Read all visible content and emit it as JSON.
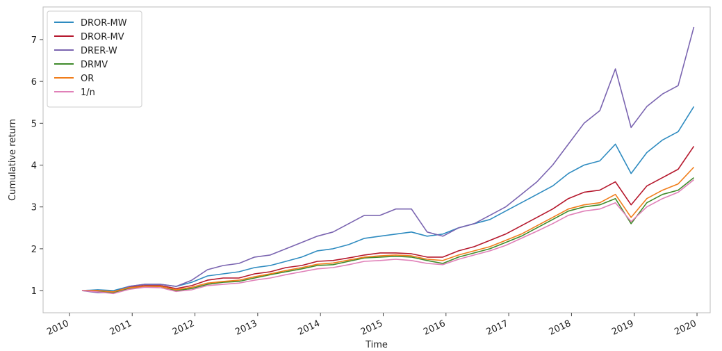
{
  "chart_data": {
    "type": "line",
    "xlabel": "Time",
    "ylabel": "Cumulative return",
    "x": [
      2010.2,
      2010.45,
      2010.7,
      2010.95,
      2011.2,
      2011.45,
      2011.7,
      2011.95,
      2012.2,
      2012.45,
      2012.7,
      2012.95,
      2013.2,
      2013.45,
      2013.7,
      2013.95,
      2014.2,
      2014.45,
      2014.7,
      2014.95,
      2015.2,
      2015.45,
      2015.7,
      2015.95,
      2016.2,
      2016.45,
      2016.7,
      2016.95,
      2017.2,
      2017.45,
      2017.7,
      2017.95,
      2018.2,
      2018.45,
      2018.7,
      2018.95,
      2019.2,
      2019.45,
      2019.7,
      2019.95
    ],
    "series": [
      {
        "name": "DROR-MW",
        "color": "#2e8bc0",
        "values": [
          1.0,
          1.02,
          1.0,
          1.1,
          1.15,
          1.15,
          1.1,
          1.2,
          1.35,
          1.4,
          1.45,
          1.55,
          1.6,
          1.7,
          1.8,
          1.95,
          2.0,
          2.1,
          2.25,
          2.3,
          2.35,
          2.4,
          2.3,
          2.35,
          2.5,
          2.6,
          2.7,
          2.9,
          3.1,
          3.3,
          3.5,
          3.8,
          4.0,
          4.1,
          4.5,
          3.8,
          4.3,
          4.6,
          4.8,
          5.4
        ]
      },
      {
        "name": "DROR-MV",
        "color": "#b5172c",
        "values": [
          1.0,
          1.0,
          0.97,
          1.08,
          1.12,
          1.12,
          1.05,
          1.12,
          1.25,
          1.3,
          1.3,
          1.4,
          1.45,
          1.55,
          1.6,
          1.7,
          1.72,
          1.78,
          1.85,
          1.9,
          1.9,
          1.88,
          1.8,
          1.8,
          1.95,
          2.05,
          2.2,
          2.35,
          2.55,
          2.75,
          2.95,
          3.2,
          3.35,
          3.4,
          3.6,
          3.05,
          3.5,
          3.7,
          3.9,
          4.45
        ]
      },
      {
        "name": "DRER-W",
        "color": "#7a64b0",
        "values": [
          1.0,
          0.95,
          0.95,
          1.1,
          1.15,
          1.15,
          1.1,
          1.25,
          1.5,
          1.6,
          1.65,
          1.8,
          1.85,
          2.0,
          2.15,
          2.3,
          2.4,
          2.6,
          2.8,
          2.8,
          2.95,
          2.95,
          2.4,
          2.3,
          2.5,
          2.6,
          2.8,
          3.0,
          3.3,
          3.6,
          4.0,
          4.5,
          5.0,
          5.3,
          6.3,
          4.9,
          5.4,
          5.7,
          5.9,
          7.3
        ]
      },
      {
        "name": "DRMV",
        "color": "#3f8a2a",
        "values": [
          1.0,
          0.98,
          0.95,
          1.05,
          1.1,
          1.1,
          1.0,
          1.05,
          1.15,
          1.2,
          1.22,
          1.3,
          1.38,
          1.45,
          1.52,
          1.6,
          1.62,
          1.7,
          1.78,
          1.8,
          1.82,
          1.8,
          1.72,
          1.65,
          1.8,
          1.9,
          2.0,
          2.15,
          2.3,
          2.5,
          2.7,
          2.9,
          3.0,
          3.05,
          3.2,
          2.6,
          3.1,
          3.3,
          3.4,
          3.7
        ]
      },
      {
        "name": "OR",
        "color": "#f07d1a",
        "values": [
          1.0,
          1.0,
          0.97,
          1.07,
          1.1,
          1.1,
          1.02,
          1.08,
          1.18,
          1.22,
          1.25,
          1.33,
          1.4,
          1.48,
          1.55,
          1.63,
          1.66,
          1.73,
          1.8,
          1.83,
          1.85,
          1.83,
          1.75,
          1.72,
          1.85,
          1.95,
          2.05,
          2.2,
          2.35,
          2.55,
          2.75,
          2.95,
          3.05,
          3.1,
          3.3,
          2.75,
          3.2,
          3.4,
          3.55,
          3.95
        ]
      },
      {
        "name": "1/n",
        "color": "#e080b8",
        "values": [
          1.0,
          0.97,
          0.93,
          1.03,
          1.08,
          1.07,
          0.98,
          1.02,
          1.12,
          1.15,
          1.18,
          1.25,
          1.3,
          1.38,
          1.45,
          1.52,
          1.55,
          1.62,
          1.7,
          1.72,
          1.75,
          1.72,
          1.65,
          1.62,
          1.75,
          1.85,
          1.95,
          2.08,
          2.25,
          2.42,
          2.6,
          2.8,
          2.9,
          2.95,
          3.1,
          2.65,
          3.0,
          3.2,
          3.35,
          3.65
        ]
      }
    ],
    "xlim": [
      2009.58,
      2020.21
    ],
    "xticks": [
      2010,
      2011,
      2012,
      2013,
      2014,
      2015,
      2016,
      2017,
      2018,
      2019,
      2020
    ],
    "ylim": [
      0.47,
      7.78
    ],
    "yticks": [
      1,
      2,
      3,
      4,
      5,
      6,
      7
    ],
    "grid": false,
    "legend": "upper left"
  }
}
